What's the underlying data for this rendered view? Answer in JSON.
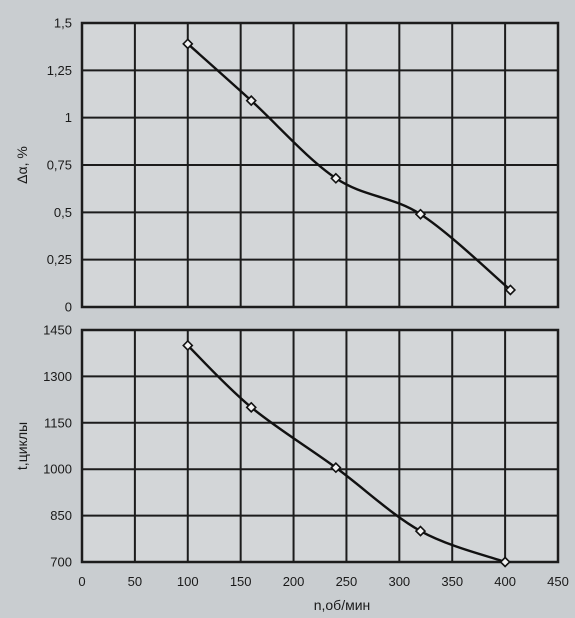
{
  "chart_data": [
    {
      "type": "line",
      "ylabel": "Δα, %",
      "xlabel": "",
      "xlim": [
        0,
        450
      ],
      "ylim": [
        0,
        1.5
      ],
      "x_ticks": [
        0,
        50,
        100,
        150,
        200,
        250,
        300,
        350,
        400,
        450
      ],
      "y_ticks": [
        "0",
        "0,25",
        "0,5",
        "0,75",
        "1",
        "1,25",
        "1,5"
      ],
      "y_tick_values": [
        0,
        0.25,
        0.5,
        0.75,
        1,
        1.25,
        1.5
      ],
      "show_x_tick_labels": false,
      "grid": true,
      "marker": "diamond",
      "series": [
        {
          "x": [
            100,
            160,
            240,
            320,
            405
          ],
          "y": [
            1.39,
            1.09,
            0.68,
            0.49,
            0.09
          ]
        }
      ]
    },
    {
      "type": "line",
      "ylabel": "t,циклы",
      "xlabel": "n,об/мин",
      "xlim": [
        0,
        450
      ],
      "ylim": [
        700,
        1450
      ],
      "x_ticks": [
        "0",
        "50",
        "100",
        "150",
        "200",
        "250",
        "300",
        "350",
        "400",
        "450"
      ],
      "x_tick_values": [
        0,
        50,
        100,
        150,
        200,
        250,
        300,
        350,
        400,
        450
      ],
      "y_ticks": [
        "700",
        "850",
        "1000",
        "1150",
        "1300",
        "1450"
      ],
      "y_tick_values": [
        700,
        850,
        1000,
        1150,
        1300,
        1450
      ],
      "show_x_tick_labels": true,
      "grid": true,
      "marker": "diamond",
      "series": [
        {
          "x": [
            100,
            160,
            240,
            320,
            400
          ],
          "y": [
            1400,
            1200,
            1005,
            800,
            700
          ]
        }
      ]
    }
  ]
}
